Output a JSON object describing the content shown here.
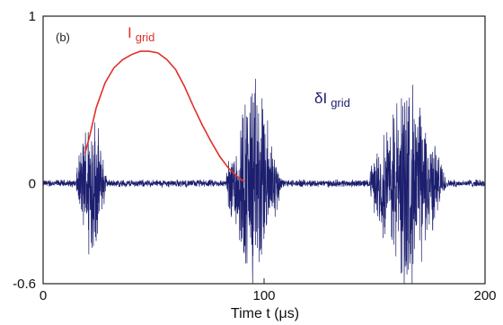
{
  "chart_data": {
    "type": "line",
    "panel_label": "(b)",
    "xlabel": "Time  t  (μs)",
    "xlim": [
      0,
      200
    ],
    "ylim": [
      -0.6,
      1
    ],
    "x_ticks": [
      0,
      100,
      200
    ],
    "y_ticks": [
      -0.6,
      0,
      1
    ],
    "grid": false,
    "series": [
      {
        "label_main": "I",
        "label_sub": "grid",
        "color": "#e0302a",
        "x": [
          19,
          21,
          24,
          28,
          32,
          36,
          40,
          44,
          46,
          48,
          52,
          56,
          60,
          64,
          68,
          72,
          76,
          80,
          84,
          88,
          91
        ],
        "y": [
          0.18,
          0.28,
          0.45,
          0.6,
          0.69,
          0.74,
          0.77,
          0.79,
          0.79,
          0.79,
          0.78,
          0.74,
          0.68,
          0.58,
          0.46,
          0.35,
          0.25,
          0.16,
          0.09,
          0.04,
          0.01
        ]
      },
      {
        "label_main": "δI",
        "label_sub": "grid",
        "color": "#1c1e6e",
        "noise_floor": 0.025,
        "bursts": [
          {
            "x_start": 15,
            "x_end": 30,
            "peak_pos": 0.45,
            "peak_neg": -0.6
          },
          {
            "x_start": 83,
            "x_end": 110,
            "peak_pos": 0.8,
            "peak_neg": -0.6
          },
          {
            "x_start": 148,
            "x_end": 185,
            "peak_pos": 0.78,
            "peak_neg": -0.56
          }
        ]
      }
    ]
  }
}
